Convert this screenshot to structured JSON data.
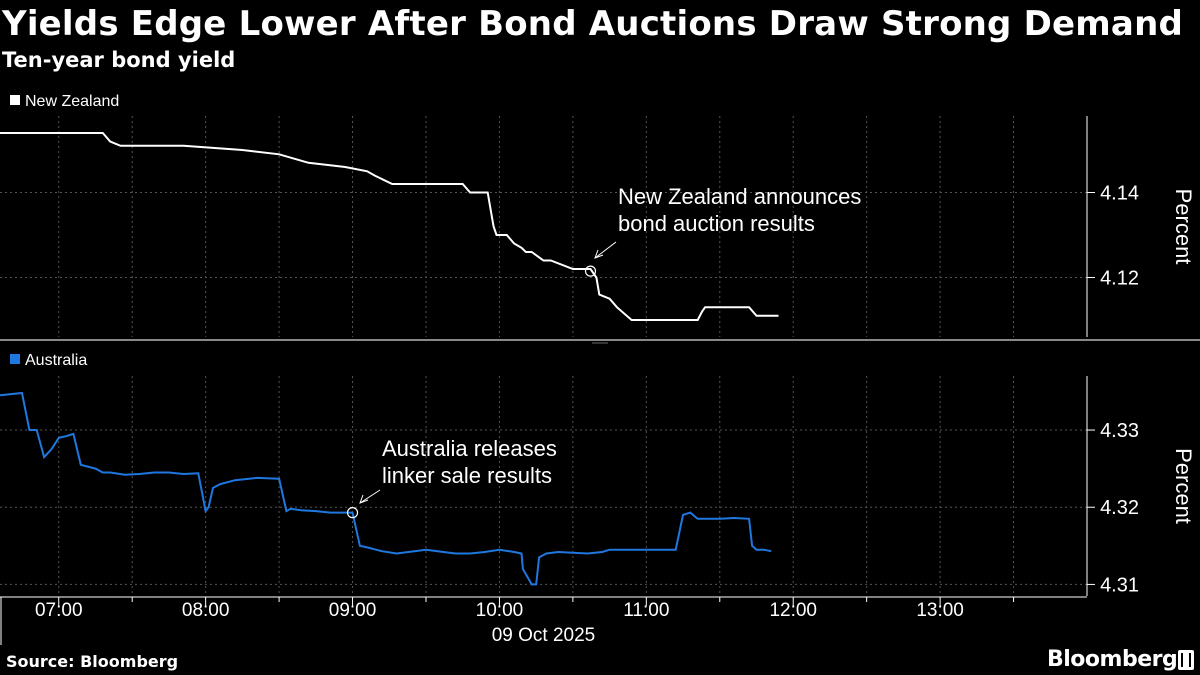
{
  "title": "Yields Edge Lower After Bond Auctions Draw Strong Demand",
  "subtitle": "Ten-year bond yield",
  "source": "Source: Bloomberg",
  "brand": "Bloomberg",
  "colors": {
    "background": "#000000",
    "nz_line": "#ffffff",
    "au_line": "#1f78e0",
    "grid": "#555555"
  },
  "chart_data": [
    {
      "type": "line",
      "legend": "New Zealand",
      "ylabel": "Percent",
      "ylim": [
        4.106,
        4.158
      ],
      "yticks": [
        4.12,
        4.14
      ],
      "annotation": {
        "text_lines": [
          "New Zealand announces",
          "bond auction results"
        ],
        "x": 10.62,
        "y": 4.1215
      },
      "x": [
        6.6,
        7.1,
        7.3,
        7.35,
        7.42,
        7.5,
        7.85,
        8.25,
        8.5,
        8.7,
        8.95,
        9.1,
        9.15,
        9.27,
        9.5,
        9.75,
        9.8,
        9.92,
        9.94,
        9.96,
        9.98,
        10.05,
        10.1,
        10.15,
        10.18,
        10.22,
        10.3,
        10.35,
        10.5,
        10.62,
        10.66,
        10.68,
        10.75,
        10.8,
        10.9,
        11.35,
        11.38,
        11.4,
        11.45,
        11.7,
        11.75,
        11.9
      ],
      "y": [
        4.154,
        4.154,
        4.154,
        4.152,
        4.151,
        4.151,
        4.151,
        4.15,
        4.149,
        4.147,
        4.146,
        4.145,
        4.144,
        4.142,
        4.142,
        4.142,
        4.14,
        4.14,
        4.136,
        4.132,
        4.13,
        4.13,
        4.128,
        4.127,
        4.126,
        4.126,
        4.124,
        4.124,
        4.122,
        4.122,
        4.12,
        4.116,
        4.115,
        4.113,
        4.11,
        4.11,
        4.112,
        4.113,
        4.113,
        4.113,
        4.111,
        4.111
      ]
    },
    {
      "type": "line",
      "legend": "Australia",
      "ylabel": "Percent",
      "ylim": [
        4.3085,
        4.337
      ],
      "yticks": [
        4.31,
        4.32,
        4.33
      ],
      "annotation": {
        "text_lines": [
          "Australia releases",
          "linker sale results"
        ],
        "x": 9.0,
        "y": 4.3193
      },
      "x": [
        6.6,
        6.75,
        6.8,
        6.85,
        6.9,
        6.95,
        7.0,
        7.05,
        7.1,
        7.15,
        7.25,
        7.3,
        7.35,
        7.45,
        7.55,
        7.65,
        7.75,
        7.85,
        7.95,
        8.0,
        8.02,
        8.05,
        8.1,
        8.2,
        8.35,
        8.5,
        8.55,
        8.58,
        8.65,
        8.75,
        8.85,
        8.95,
        9.0,
        9.05,
        9.1,
        9.2,
        9.3,
        9.5,
        9.7,
        9.8,
        9.9,
        10.0,
        10.1,
        10.15,
        10.16,
        10.22,
        10.25,
        10.27,
        10.32,
        10.4,
        10.6,
        10.7,
        10.75,
        10.85,
        11.0,
        11.2,
        11.25,
        11.28,
        11.3,
        11.33,
        11.35,
        11.38,
        11.43,
        11.47,
        11.5,
        11.6,
        11.7,
        11.72,
        11.75,
        11.8,
        11.85
      ],
      "y": [
        4.3345,
        4.3348,
        4.33,
        4.33,
        4.3265,
        4.3275,
        4.329,
        4.3292,
        4.3295,
        4.3255,
        4.325,
        4.3245,
        4.3245,
        4.3242,
        4.3243,
        4.3245,
        4.3245,
        4.3243,
        4.3244,
        4.3195,
        4.32,
        4.3225,
        4.323,
        4.3235,
        4.3238,
        4.3237,
        4.3195,
        4.3198,
        4.3196,
        4.3195,
        4.3193,
        4.3193,
        4.3193,
        4.315,
        4.3148,
        4.3143,
        4.314,
        4.3145,
        4.314,
        4.314,
        4.3142,
        4.3145,
        4.3142,
        4.314,
        4.312,
        4.31,
        4.31,
        4.3135,
        4.314,
        4.3142,
        4.314,
        4.3142,
        4.3145,
        4.3145,
        4.3145,
        4.3145,
        4.319,
        4.3192,
        4.3193,
        4.3188,
        4.3185,
        4.3185,
        4.3185,
        4.3185,
        4.3185,
        4.3186,
        4.3185,
        4.315,
        4.3145,
        4.3145,
        4.3143
      ]
    }
  ],
  "x_axis": {
    "range": [
      6.6,
      14.0
    ],
    "tick_labels": [
      "07:00",
      "08:00",
      "09:00",
      "10:00",
      "11:00",
      "12:00",
      "13:00"
    ],
    "tick_values": [
      7,
      8,
      9,
      10,
      11,
      12,
      13
    ],
    "date_label": "09 Oct 2025"
  }
}
